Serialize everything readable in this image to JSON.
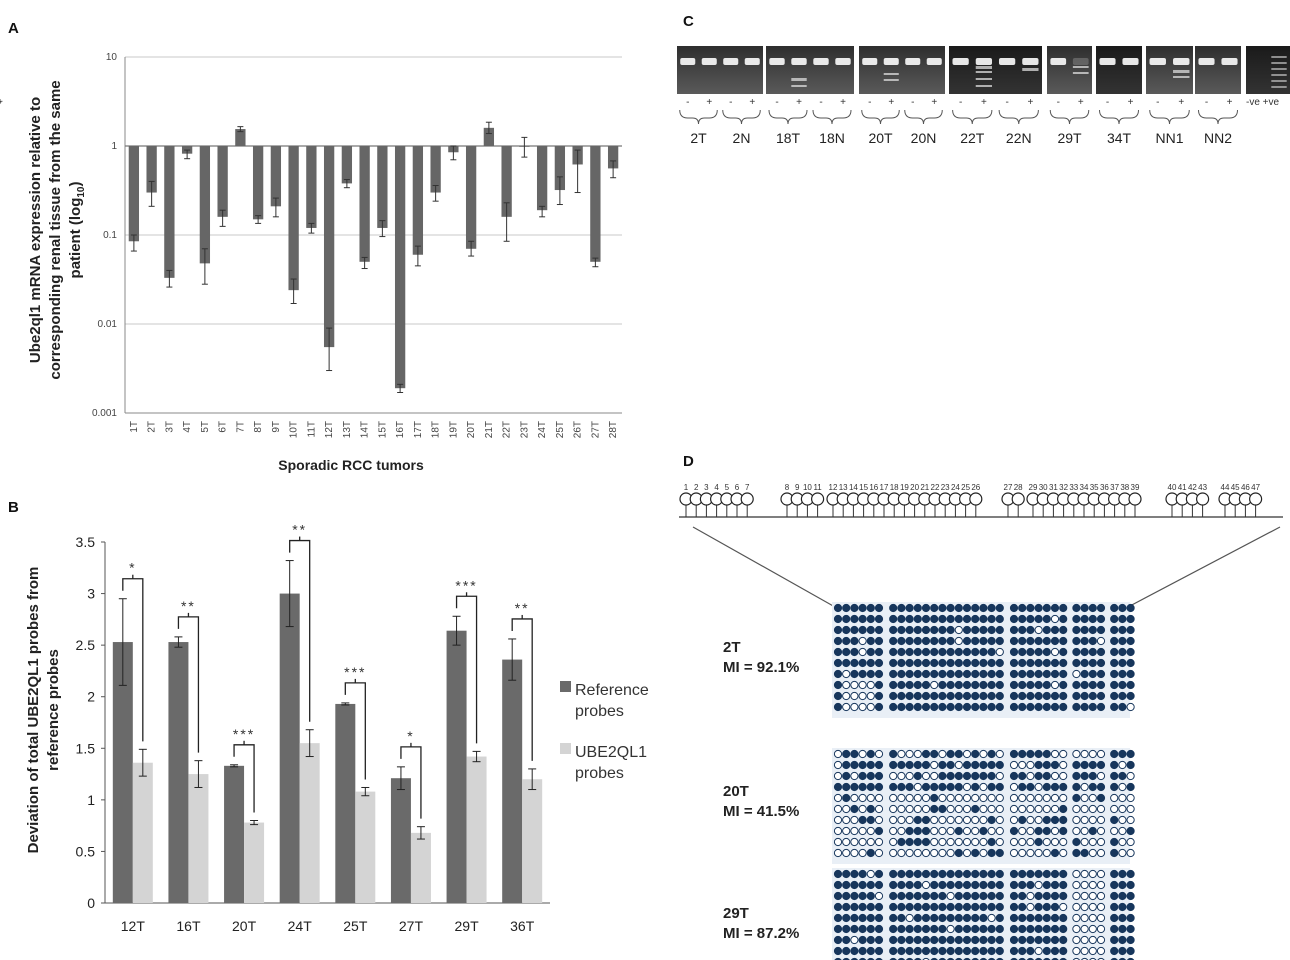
{
  "panels": {
    "A": {
      "letter": "A",
      "ylabel_lines": [
        "Ube2ql1 mRNA expression relative to",
        "corresponding renal tissue from the same"
      ],
      "ylabel_last": "patient (log",
      "ylabel_sub": "10",
      "ylabel_close": ")",
      "xlabel": "Sporadic RCC tumors"
    },
    "B": {
      "letter": "B",
      "ylabel_lines": [
        "Deviation of total UBE2QL1 probes from",
        "reference probes"
      ],
      "legend": [
        {
          "lines": [
            "Reference",
            "probes"
          ],
          "color": "#6a6a6a"
        },
        {
          "lines": [
            "UBE2QL1",
            "probes"
          ],
          "color": "#d4d4d4"
        }
      ]
    },
    "C": {
      "letter": "C",
      "lane_signs": [
        "-",
        "+",
        "-",
        "+",
        "-",
        "+",
        "-",
        "+",
        "-",
        "+",
        "-",
        "+",
        "-",
        "+",
        "-",
        "+",
        "-",
        "+",
        "-",
        "+",
        "-",
        "+",
        "-",
        "+",
        "-",
        "+"
      ],
      "control_label": "-ve +ve",
      "sample_labels": [
        "2T",
        "2N",
        "18T",
        "18N",
        "20T",
        "20N",
        "22T",
        "22N",
        "29T",
        "34T",
        "NN1",
        "NN2"
      ]
    },
    "D": {
      "letter": "D",
      "cpg_sites": [
        "1",
        "2",
        "3",
        "4",
        "5",
        "6",
        "7",
        "8",
        "9",
        "10",
        "11",
        "12",
        "13",
        "14",
        "15",
        "16",
        "17",
        "18",
        "19",
        "20",
        "21",
        "22",
        "23",
        "24",
        "25",
        "26",
        "27",
        "28",
        "29",
        "30",
        "31",
        "32",
        "33",
        "34",
        "35",
        "36",
        "37",
        "38",
        "39",
        "40",
        "41",
        "42",
        "43",
        "44",
        "45",
        "46",
        "47"
      ],
      "samples": [
        {
          "name": "2T",
          "mi": "MI = 92.1%",
          "mi_value": 92.1
        },
        {
          "name": "20T",
          "mi": "MI = 41.5%",
          "mi_value": 41.5
        },
        {
          "name": "29T",
          "mi": "MI = 87.2%",
          "mi_value": 87.2
        }
      ]
    }
  },
  "chart_data": [
    {
      "panel": "A",
      "type": "bar",
      "scale": "log10",
      "ylim": [
        0.001,
        10
      ],
      "yticks": [
        "10",
        "1",
        "0.1",
        "0.01",
        "0.001"
      ],
      "ytick_values": [
        10,
        1,
        0.1,
        0.01,
        0.001
      ],
      "grid": true,
      "baseline": 1,
      "categories": [
        "1T",
        "2T",
        "3T",
        "4T",
        "5T",
        "6T",
        "7T",
        "8T",
        "9T",
        "10T",
        "11T",
        "12T",
        "13T",
        "14T",
        "15T",
        "16T",
        "17T",
        "18T",
        "19T",
        "20T",
        "21T",
        "22T",
        "23T",
        "24T",
        "25T",
        "26T",
        "27T",
        "28T"
      ],
      "values": [
        0.085,
        0.3,
        0.033,
        0.82,
        0.048,
        0.16,
        1.55,
        0.15,
        0.21,
        0.024,
        0.12,
        0.0055,
        0.38,
        0.05,
        0.12,
        0.0019,
        0.06,
        0.3,
        0.85,
        0.07,
        1.6,
        0.16,
        0.98,
        0.19,
        0.32,
        0.62,
        0.05,
        0.56
      ],
      "err_low": [
        0.066,
        0.21,
        0.026,
        0.72,
        0.028,
        0.125,
        1.45,
        0.135,
        0.16,
        0.017,
        0.105,
        0.003,
        0.34,
        0.042,
        0.096,
        0.0017,
        0.045,
        0.24,
        0.7,
        0.058,
        1.38,
        0.085,
        0.75,
        0.16,
        0.22,
        0.3,
        0.044,
        0.44
      ],
      "err_high": [
        0.1,
        0.4,
        0.04,
        0.9,
        0.07,
        0.19,
        1.65,
        0.165,
        0.26,
        0.032,
        0.135,
        0.009,
        0.42,
        0.056,
        0.145,
        0.0021,
        0.075,
        0.36,
        1.0,
        0.085,
        1.85,
        0.23,
        1.25,
        0.21,
        0.45,
        0.9,
        0.055,
        0.68
      ],
      "xlabel": "Sporadic RCC tumors"
    },
    {
      "panel": "B",
      "type": "bar",
      "ylim": [
        0,
        3.5
      ],
      "yticks": [
        "0",
        "0.5",
        "1",
        "1.5",
        "2",
        "2.5",
        "3",
        "3.5"
      ],
      "ytick_values": [
        0,
        0.5,
        1,
        1.5,
        2,
        2.5,
        3,
        3.5
      ],
      "grid": false,
      "legend_position": "right",
      "categories": [
        "12T",
        "16T",
        "20T",
        "24T",
        "25T",
        "27T",
        "29T",
        "36T"
      ],
      "series": [
        {
          "name": "Reference probes",
          "color": "#6a6a6a",
          "values": [
            2.53,
            2.53,
            1.33,
            3.0,
            1.93,
            1.21,
            2.64,
            2.36
          ],
          "errors": [
            0.42,
            0.05,
            0.01,
            0.32,
            0.01,
            0.11,
            0.14,
            0.2
          ]
        },
        {
          "name": "UBE2QL1 probes",
          "color": "#d4d4d4",
          "values": [
            1.36,
            1.25,
            0.78,
            1.55,
            1.08,
            0.68,
            1.42,
            1.2
          ],
          "errors": [
            0.13,
            0.13,
            0.02,
            0.13,
            0.04,
            0.06,
            0.05,
            0.1
          ]
        }
      ],
      "significance": [
        "*",
        "**",
        "***",
        "**",
        "***",
        "*",
        "***",
        "**"
      ]
    }
  ]
}
